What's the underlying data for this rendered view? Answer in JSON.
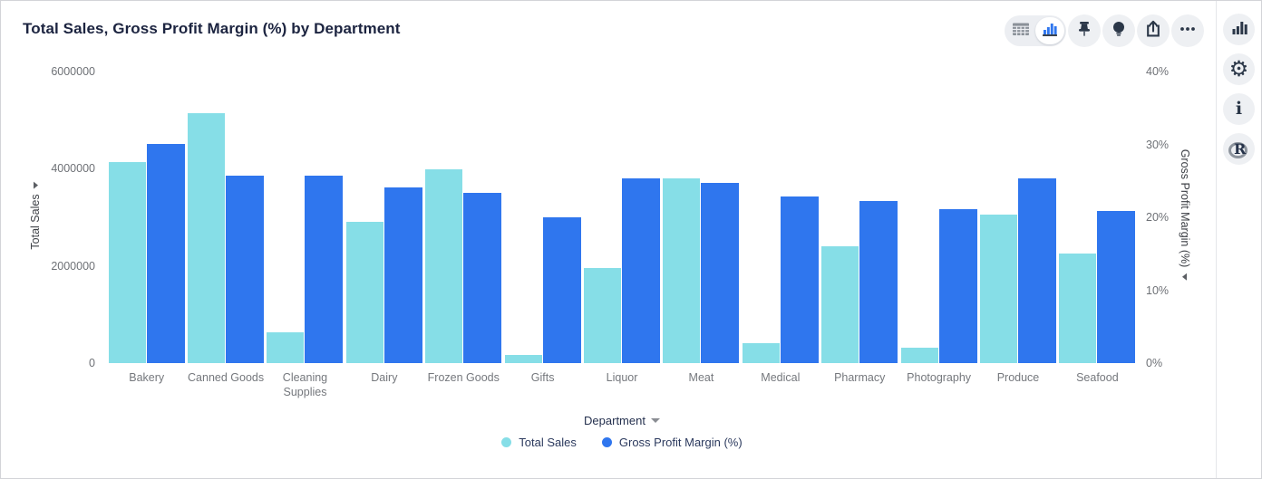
{
  "title": "Total Sales, Gross Profit Margin (%) by Department",
  "toolbar": {
    "icons": [
      {
        "name": "table-view-icon",
        "active": false
      },
      {
        "name": "chart-view-icon",
        "active": true
      },
      {
        "name": "pin-icon"
      },
      {
        "name": "lightbulb-icon"
      },
      {
        "name": "share-export-icon"
      },
      {
        "name": "more-options-icon"
      }
    ]
  },
  "side_rail": {
    "icons": [
      "chart-type-icon",
      "settings-gear-icon",
      "info-icon",
      "r-logo-icon"
    ]
  },
  "colors": {
    "series_total_sales": "#86DEE7",
    "series_gross_profit_margin": "#2F76EE",
    "title_text": "#1c2440",
    "tick_text": "#6e7176",
    "icon_dark": "#2b3748"
  },
  "chart_data": {
    "type": "bar",
    "title": "Total Sales, Gross Profit Margin (%) by Department",
    "categories": [
      "Bakery",
      "Canned Goods",
      "Cleaning Supplies",
      "Dairy",
      "Frozen Goods",
      "Gifts",
      "Liquor",
      "Meat",
      "Medical",
      "Pharmacy",
      "Photography",
      "Produce",
      "Seafood"
    ],
    "series": [
      {
        "name": "Total Sales",
        "axis": "left",
        "color": "#86DEE7",
        "values": [
          4140000,
          5140000,
          630000,
          2910000,
          3980000,
          170000,
          1960000,
          3800000,
          420000,
          2400000,
          320000,
          3060000,
          2250000
        ]
      },
      {
        "name": "Gross Profit Margin (%)",
        "axis": "right",
        "color": "#2F76EE",
        "values": [
          30.1,
          25.7,
          25.7,
          24.1,
          23.4,
          20.0,
          25.3,
          24.7,
          22.9,
          22.2,
          21.1,
          25.3,
          20.9
        ]
      }
    ],
    "left_axis": {
      "label": "Total Sales",
      "min": 0,
      "max": 6000000,
      "tick_values": [
        6000000,
        4000000,
        2000000,
        0
      ],
      "tick_labels": [
        "6000000",
        "4000000",
        "2000000",
        "0"
      ]
    },
    "right_axis": {
      "label": "Gross Profit Margin (%)",
      "min": 0,
      "max": 40,
      "tick_values": [
        40,
        30,
        20,
        10,
        0
      ],
      "tick_labels": [
        "40%",
        "30%",
        "20%",
        "10%",
        "0%"
      ]
    },
    "xlabel": "Department",
    "grid": false,
    "legend_position": "bottom",
    "legend_items": [
      "Total Sales",
      "Gross Profit Margin (%)"
    ]
  }
}
